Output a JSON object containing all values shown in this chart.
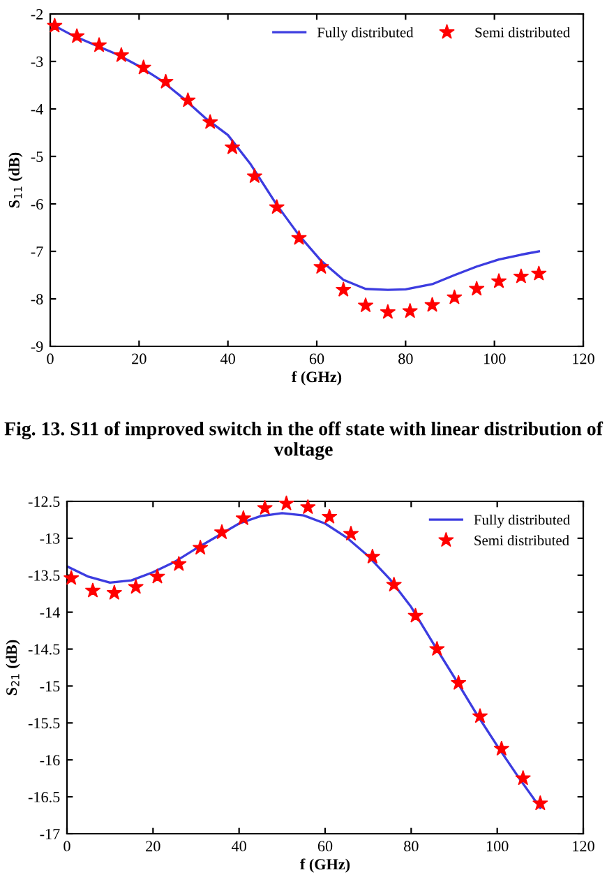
{
  "chart_data": [
    {
      "type": "line",
      "xlabel": "f (GHz)",
      "ylabel": "S$_{11}$ (dB)",
      "xlim": [
        0,
        120
      ],
      "xticks": [
        0,
        20,
        40,
        60,
        80,
        100,
        120
      ],
      "ylim": [
        -9,
        -2
      ],
      "yticks": [
        -9,
        -8,
        -7,
        -6,
        -5,
        -4,
        -3,
        -2
      ],
      "grid": false,
      "legend": "top right",
      "annotations": [
        "Fig. 13. S11 of improved switch in the off state with linear distribution of voltage"
      ],
      "series": [
        {
          "name": "Fully distributed",
          "color": "#3c3ce0",
          "marker": "none",
          "line_style": "solid",
          "x": [
            0,
            5,
            10,
            15,
            20,
            25,
            30,
            35,
            40,
            45,
            51,
            56,
            61,
            66,
            71,
            76,
            80,
            86,
            91,
            96,
            101,
            106,
            110
          ],
          "values": [
            -2.2,
            -2.45,
            -2.65,
            -2.85,
            -3.1,
            -3.4,
            -3.78,
            -4.2,
            -4.55,
            -5.15,
            -6.02,
            -6.66,
            -7.2,
            -7.6,
            -7.79,
            -7.81,
            -7.8,
            -7.69,
            -7.5,
            -7.32,
            -7.17,
            -7.07,
            -7.0
          ]
        },
        {
          "name": "Semi distributed",
          "type": "scatter",
          "color": "#ff0000",
          "marker": "star",
          "x": [
            1,
            6,
            11,
            16,
            21,
            26,
            31,
            36,
            41,
            46,
            51,
            56,
            61,
            66,
            71,
            76,
            81,
            86,
            91,
            96,
            101,
            106,
            110
          ],
          "values": [
            -2.25,
            -2.47,
            -2.66,
            -2.87,
            -3.13,
            -3.43,
            -3.82,
            -4.28,
            -4.81,
            -5.42,
            -6.07,
            -6.72,
            -7.33,
            -7.81,
            -8.14,
            -8.28,
            -8.26,
            -8.13,
            -7.97,
            -7.79,
            -7.63,
            -7.53,
            -7.47
          ]
        }
      ]
    },
    {
      "type": "line",
      "xlabel": "f (GHz)",
      "ylabel": "S$_{21}$ (dB)",
      "xlim": [
        0,
        120
      ],
      "xticks": [
        0,
        20,
        40,
        60,
        80,
        100,
        120
      ],
      "ylim": [
        -17,
        -12.5
      ],
      "yticks": [
        -17,
        -16.5,
        -16,
        -15.5,
        -15,
        -14.5,
        -14,
        -13.5,
        -13,
        -12.5
      ],
      "grid": false,
      "legend": "top right",
      "series": [
        {
          "name": "Fully distributed",
          "color": "#3c3ce0",
          "marker": "none",
          "line_style": "solid",
          "x": [
            0,
            5,
            10,
            15,
            20,
            25,
            30,
            35,
            40,
            45,
            50,
            55,
            60,
            65,
            70,
            75,
            80,
            85,
            90,
            95,
            100,
            105,
            110
          ],
          "values": [
            -13.38,
            -13.52,
            -13.6,
            -13.57,
            -13.46,
            -13.32,
            -13.14,
            -12.97,
            -12.8,
            -12.7,
            -12.66,
            -12.69,
            -12.8,
            -12.99,
            -13.24,
            -13.55,
            -13.93,
            -14.41,
            -14.88,
            -15.36,
            -15.81,
            -16.24,
            -16.65
          ]
        },
        {
          "name": "Semi distributed",
          "type": "scatter",
          "color": "#ff0000",
          "marker": "star",
          "x": [
            1,
            6,
            11,
            16,
            21,
            26,
            31,
            36,
            41,
            46,
            51,
            56,
            61,
            66,
            71,
            76,
            81,
            86,
            91,
            96,
            101,
            106,
            110
          ],
          "values": [
            -13.54,
            -13.71,
            -13.74,
            -13.66,
            -13.52,
            -13.35,
            -13.13,
            -12.92,
            -12.73,
            -12.59,
            -12.53,
            -12.58,
            -12.71,
            -12.94,
            -13.25,
            -13.63,
            -14.05,
            -14.5,
            -14.96,
            -15.41,
            -15.85,
            -16.25,
            -16.59
          ]
        }
      ]
    }
  ]
}
